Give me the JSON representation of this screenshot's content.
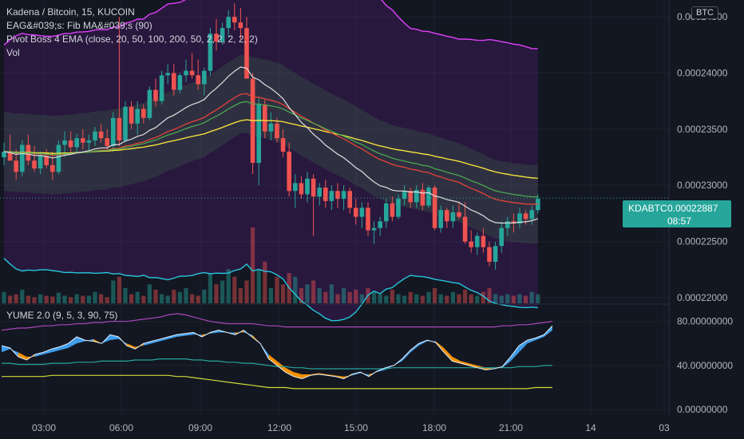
{
  "header": {
    "title": "Kadena / Bitcoin, 15, KUCOIN",
    "indicator_1": "EAG&#039;s: Fib MA&#039;s (90)",
    "indicator_2": "Pivot Boss 4 EMA (close, 20, 50, 100, 200, 50, 2, 2, 2, 2, 2)",
    "indicator_3": "Vol",
    "lower_indicator": "YUME 2.0 (9, 5, 3, 90, 75)"
  },
  "currency_button": "BTC",
  "price_tag": {
    "symbol": "KDABTC",
    "price": "0.00022887",
    "countdown": "08:57"
  },
  "colors": {
    "up": "#26a69a",
    "down": "#ef5350",
    "background": "#131722",
    "magenta": "#e040fb",
    "yellow": "#ffeb3b",
    "red_ema": "#f44336",
    "green_ema": "#4caf50",
    "cyan": "#26c6da",
    "white_ema": "#e0e0e0",
    "blue_ema": "#3f51b5"
  },
  "chart_data": [
    {
      "type": "candlestick",
      "title": "Kadena / Bitcoin, 15, KUCOIN",
      "x_tick_labels": [
        "03:00",
        "06:00",
        "09:00",
        "12:00",
        "15:00",
        "18:00",
        "21:00",
        "14",
        "03"
      ],
      "y_tick_labels": [
        "0.00024500",
        "0.00024000",
        "0.00023500",
        "0.00023000",
        "0.00022500",
        "0.00022000"
      ],
      "ylim": [
        0.0002195,
        0.0002465
      ],
      "last_price": 0.00022887,
      "candles": [
        {
          "o": 0.0002325,
          "h": 0.0002338,
          "l": 0.0002318,
          "c": 0.000233
        },
        {
          "o": 0.000233,
          "h": 0.0002345,
          "l": 0.0002322,
          "c": 0.0002322
        },
        {
          "o": 0.0002322,
          "h": 0.0002332,
          "l": 0.0002305,
          "c": 0.0002312
        },
        {
          "o": 0.0002312,
          "h": 0.000234,
          "l": 0.0002308,
          "c": 0.0002336
        },
        {
          "o": 0.0002336,
          "h": 0.0002345,
          "l": 0.0002318,
          "c": 0.0002322
        },
        {
          "o": 0.0002322,
          "h": 0.0002335,
          "l": 0.0002312,
          "c": 0.0002315
        },
        {
          "o": 0.0002315,
          "h": 0.000233,
          "l": 0.000231,
          "c": 0.0002326
        },
        {
          "o": 0.0002326,
          "h": 0.0002332,
          "l": 0.0002315,
          "c": 0.0002318
        },
        {
          "o": 0.0002318,
          "h": 0.000233,
          "l": 0.0002305,
          "c": 0.0002312
        },
        {
          "o": 0.0002312,
          "h": 0.000234,
          "l": 0.000231,
          "c": 0.0002336
        },
        {
          "o": 0.0002336,
          "h": 0.0002348,
          "l": 0.0002325,
          "c": 0.000234
        },
        {
          "o": 0.000234,
          "h": 0.0002348,
          "l": 0.0002328,
          "c": 0.0002334
        },
        {
          "o": 0.0002334,
          "h": 0.0002346,
          "l": 0.000233,
          "c": 0.0002342
        },
        {
          "o": 0.0002342,
          "h": 0.000235,
          "l": 0.0002332,
          "c": 0.0002338
        },
        {
          "o": 0.0002338,
          "h": 0.0002345,
          "l": 0.000233,
          "c": 0.000234
        },
        {
          "o": 0.000234,
          "h": 0.0002352,
          "l": 0.0002335,
          "c": 0.0002348
        },
        {
          "o": 0.0002348,
          "h": 0.0002355,
          "l": 0.0002338,
          "c": 0.0002342
        },
        {
          "o": 0.0002342,
          "h": 0.000235,
          "l": 0.000233,
          "c": 0.0002335
        },
        {
          "o": 0.0002335,
          "h": 0.0002365,
          "l": 0.000233,
          "c": 0.000236
        },
        {
          "o": 0.000236,
          "h": 0.000245,
          "l": 0.0002335,
          "c": 0.000234
        },
        {
          "o": 0.000234,
          "h": 0.0002375,
          "l": 0.0002338,
          "c": 0.000237
        },
        {
          "o": 0.000237,
          "h": 0.0002375,
          "l": 0.000235,
          "c": 0.0002355
        },
        {
          "o": 0.0002355,
          "h": 0.0002375,
          "l": 0.0002345,
          "c": 0.0002368
        },
        {
          "o": 0.0002368,
          "h": 0.0002372,
          "l": 0.0002355,
          "c": 0.000236
        },
        {
          "o": 0.000236,
          "h": 0.0002388,
          "l": 0.0002358,
          "c": 0.0002385
        },
        {
          "o": 0.0002385,
          "h": 0.0002395,
          "l": 0.000237,
          "c": 0.0002375
        },
        {
          "o": 0.0002375,
          "h": 0.0002402,
          "l": 0.0002372,
          "c": 0.0002398
        },
        {
          "o": 0.0002398,
          "h": 0.0002408,
          "l": 0.000239,
          "c": 0.00024
        },
        {
          "o": 0.00024,
          "h": 0.0002408,
          "l": 0.000238,
          "c": 0.0002385
        },
        {
          "o": 0.0002385,
          "h": 0.00024,
          "l": 0.0002382,
          "c": 0.0002398
        },
        {
          "o": 0.0002398,
          "h": 0.0002412,
          "l": 0.0002392,
          "c": 0.0002402
        },
        {
          "o": 0.0002402,
          "h": 0.0002418,
          "l": 0.0002395,
          "c": 0.0002398
        },
        {
          "o": 0.0002398,
          "h": 0.0002412,
          "l": 0.0002385,
          "c": 0.000239
        },
        {
          "o": 0.000239,
          "h": 0.0002405,
          "l": 0.000238,
          "c": 0.0002402
        },
        {
          "o": 0.0002402,
          "h": 0.000244,
          "l": 0.0002398,
          "c": 0.0002435
        },
        {
          "o": 0.0002435,
          "h": 0.0002448,
          "l": 0.000242,
          "c": 0.0002428
        },
        {
          "o": 0.0002428,
          "h": 0.0002445,
          "l": 0.0002425,
          "c": 0.000244
        },
        {
          "o": 0.000244,
          "h": 0.0002456,
          "l": 0.0002432,
          "c": 0.000245
        },
        {
          "o": 0.000245,
          "h": 0.0002462,
          "l": 0.0002438,
          "c": 0.0002445
        },
        {
          "o": 0.0002445,
          "h": 0.0002458,
          "l": 0.000243,
          "c": 0.000244
        },
        {
          "o": 0.000244,
          "h": 0.000245,
          "l": 0.0002395,
          "c": 0.0002395
        },
        {
          "o": 0.0002395,
          "h": 0.00024,
          "l": 0.000231,
          "c": 0.000232
        },
        {
          "o": 0.000232,
          "h": 0.0002378,
          "l": 0.00023,
          "c": 0.0002372
        },
        {
          "o": 0.0002372,
          "h": 0.0002376,
          "l": 0.0002342,
          "c": 0.0002348
        },
        {
          "o": 0.0002348,
          "h": 0.0002365,
          "l": 0.000234,
          "c": 0.0002355
        },
        {
          "o": 0.0002355,
          "h": 0.000236,
          "l": 0.0002338,
          "c": 0.0002342
        },
        {
          "o": 0.0002342,
          "h": 0.000235,
          "l": 0.0002325,
          "c": 0.000233
        },
        {
          "o": 0.000233,
          "h": 0.0002338,
          "l": 0.000229,
          "c": 0.0002295
        },
        {
          "o": 0.0002295,
          "h": 0.000231,
          "l": 0.000228,
          "c": 0.0002302
        },
        {
          "o": 0.0002302,
          "h": 0.0002308,
          "l": 0.0002288,
          "c": 0.0002292
        },
        {
          "o": 0.0002292,
          "h": 0.0002312,
          "l": 0.0002285,
          "c": 0.0002306
        },
        {
          "o": 0.0002306,
          "h": 0.000231,
          "l": 0.0002255,
          "c": 0.000229
        },
        {
          "o": 0.000229,
          "h": 0.0002302,
          "l": 0.0002282,
          "c": 0.0002298
        },
        {
          "o": 0.0002298,
          "h": 0.0002305,
          "l": 0.000228,
          "c": 0.0002286
        },
        {
          "o": 0.0002286,
          "h": 0.00023,
          "l": 0.0002278,
          "c": 0.0002295
        },
        {
          "o": 0.0002295,
          "h": 0.0002302,
          "l": 0.000228,
          "c": 0.0002288
        },
        {
          "o": 0.0002288,
          "h": 0.00023,
          "l": 0.0002278,
          "c": 0.0002295
        },
        {
          "o": 0.0002295,
          "h": 0.0002298,
          "l": 0.0002275,
          "c": 0.000228
        },
        {
          "o": 0.000228,
          "h": 0.0002288,
          "l": 0.0002265,
          "c": 0.0002272
        },
        {
          "o": 0.0002272,
          "h": 0.0002285,
          "l": 0.0002262,
          "c": 0.000228
        },
        {
          "o": 0.000228,
          "h": 0.0002285,
          "l": 0.0002255,
          "c": 0.000226
        },
        {
          "o": 0.000226,
          "h": 0.0002268,
          "l": 0.0002248,
          "c": 0.0002262
        },
        {
          "o": 0.0002262,
          "h": 0.0002272,
          "l": 0.0002255,
          "c": 0.0002268
        },
        {
          "o": 0.0002268,
          "h": 0.0002288,
          "l": 0.0002262,
          "c": 0.0002284
        },
        {
          "o": 0.0002284,
          "h": 0.000229,
          "l": 0.0002268,
          "c": 0.0002272
        },
        {
          "o": 0.0002272,
          "h": 0.0002292,
          "l": 0.000227,
          "c": 0.0002288
        },
        {
          "o": 0.0002288,
          "h": 0.00023,
          "l": 0.0002282,
          "c": 0.0002295
        },
        {
          "o": 0.0002295,
          "h": 0.0002298,
          "l": 0.000228,
          "c": 0.0002285
        },
        {
          "o": 0.0002285,
          "h": 0.00023,
          "l": 0.000228,
          "c": 0.0002296
        },
        {
          "o": 0.0002296,
          "h": 0.0002302,
          "l": 0.0002278,
          "c": 0.0002282
        },
        {
          "o": 0.0002282,
          "h": 0.00023,
          "l": 0.000228,
          "c": 0.0002298
        },
        {
          "o": 0.0002298,
          "h": 0.00023,
          "l": 0.000226,
          "c": 0.0002262
        },
        {
          "o": 0.0002262,
          "h": 0.0002282,
          "l": 0.0002258,
          "c": 0.0002278
        },
        {
          "o": 0.0002278,
          "h": 0.000228,
          "l": 0.0002262,
          "c": 0.0002268
        },
        {
          "o": 0.0002268,
          "h": 0.0002282,
          "l": 0.0002262,
          "c": 0.0002276
        },
        {
          "o": 0.0002276,
          "h": 0.0002285,
          "l": 0.000227,
          "c": 0.0002272
        },
        {
          "o": 0.0002272,
          "h": 0.0002285,
          "l": 0.0002248,
          "c": 0.000225
        },
        {
          "o": 0.000225,
          "h": 0.000226,
          "l": 0.000224,
          "c": 0.0002245
        },
        {
          "o": 0.0002245,
          "h": 0.0002258,
          "l": 0.0002238,
          "c": 0.0002255
        },
        {
          "o": 0.0002255,
          "h": 0.0002262,
          "l": 0.000224,
          "c": 0.0002245
        },
        {
          "o": 0.0002245,
          "h": 0.000225,
          "l": 0.0002228,
          "c": 0.0002232
        },
        {
          "o": 0.0002232,
          "h": 0.000225,
          "l": 0.0002225,
          "c": 0.0002246
        },
        {
          "o": 0.0002246,
          "h": 0.0002268,
          "l": 0.000224,
          "c": 0.0002262
        },
        {
          "o": 0.0002262,
          "h": 0.0002272,
          "l": 0.0002255,
          "c": 0.0002268
        },
        {
          "o": 0.0002268,
          "h": 0.0002275,
          "l": 0.0002258,
          "c": 0.0002266
        },
        {
          "o": 0.0002266,
          "h": 0.000228,
          "l": 0.0002262,
          "c": 0.0002275
        },
        {
          "o": 0.0002275,
          "h": 0.0002278,
          "l": 0.0002265,
          "c": 0.000227
        },
        {
          "o": 0.000227,
          "h": 0.0002282,
          "l": 0.0002265,
          "c": 0.0002278
        },
        {
          "o": 0.0002278,
          "h": 0.0002292,
          "l": 0.0002275,
          "c": 0.0002288
        }
      ],
      "volume": [
        0.15,
        0.1,
        0.12,
        0.18,
        0.1,
        0.08,
        0.12,
        0.1,
        0.09,
        0.14,
        0.1,
        0.08,
        0.12,
        0.1,
        0.1,
        0.15,
        0.12,
        0.08,
        0.3,
        0.35,
        0.2,
        0.12,
        0.15,
        0.1,
        0.25,
        0.18,
        0.12,
        0.1,
        0.18,
        0.15,
        0.2,
        0.12,
        0.1,
        0.18,
        0.4,
        0.25,
        0.3,
        0.45,
        0.35,
        0.2,
        0.3,
        1.0,
        0.45,
        0.55,
        0.2,
        0.35,
        0.25,
        0.4,
        0.35,
        0.2,
        0.25,
        0.3,
        0.2,
        0.15,
        0.25,
        0.12,
        0.2,
        0.15,
        0.18,
        0.12,
        0.2,
        0.15,
        0.12,
        0.1,
        0.18,
        0.12,
        0.1,
        0.15,
        0.12,
        0.1,
        0.15,
        0.2,
        0.12,
        0.1,
        0.15,
        0.12,
        0.18,
        0.12,
        0.1,
        0.15,
        0.2,
        0.12,
        0.1,
        0.12,
        0.1,
        0.12,
        0.1,
        0.15,
        0.12
      ]
    },
    {
      "type": "area",
      "title": "YUME 2.0 (9, 5, 3, 90, 75)",
      "y_tick_labels": [
        "80.00000000",
        "40.00000000",
        "0.00000000"
      ],
      "ylim": [
        -5,
        95
      ],
      "fast": [
        58,
        56,
        48,
        45,
        50,
        52,
        55,
        57,
        60,
        66,
        63,
        62,
        60,
        68,
        66,
        58,
        55,
        60,
        62,
        64,
        66,
        68,
        69,
        70,
        66,
        70,
        72,
        70,
        68,
        72,
        66,
        60,
        46,
        40,
        34,
        30,
        28,
        31,
        32,
        31,
        30,
        28,
        32,
        34,
        30,
        35,
        38,
        40,
        46,
        54,
        60,
        63,
        61,
        52,
        44,
        42,
        40,
        38,
        36,
        37,
        39,
        48,
        58,
        63,
        65,
        68,
        76
      ],
      "slow": [
        52,
        55,
        52,
        48,
        48,
        50,
        52,
        54,
        56,
        60,
        62,
        64,
        60,
        63,
        64,
        60,
        57,
        58,
        60,
        62,
        64,
        66,
        67,
        68,
        68,
        69,
        70,
        70,
        70,
        70,
        68,
        60,
        50,
        44,
        38,
        34,
        32,
        32,
        33,
        32,
        31,
        30,
        31,
        33,
        32,
        34,
        36,
        40,
        44,
        52,
        58,
        62,
        62,
        56,
        48,
        44,
        42,
        40,
        38,
        37,
        38,
        44,
        52,
        60,
        63,
        66,
        72
      ],
      "upper_band": [
        72,
        73,
        74,
        74,
        75,
        76,
        76,
        77,
        77,
        78,
        78,
        79,
        79,
        80,
        80,
        80,
        81,
        82,
        83,
        84,
        86,
        87,
        86,
        84,
        82,
        80,
        79,
        78,
        78,
        78,
        78,
        77,
        76,
        76,
        75,
        75,
        75,
        75,
        75,
        75,
        75,
        75,
        75,
        75,
        75,
        75,
        75,
        75,
        75,
        75,
        75,
        75,
        75,
        75,
        75,
        75,
        75,
        75,
        75,
        75,
        76,
        76,
        77,
        77,
        78,
        79,
        80
      ],
      "mid_line": [
        42,
        42,
        41,
        41,
        41,
        41,
        42,
        42,
        42,
        43,
        43,
        43,
        44,
        44,
        44,
        44,
        45,
        45,
        45,
        46,
        46,
        46,
        46,
        45,
        45,
        44,
        44,
        43,
        43,
        42,
        42,
        41,
        40,
        39,
        39,
        38,
        38,
        37,
        37,
        37,
        37,
        37,
        37,
        37,
        37,
        37,
        37,
        38,
        38,
        38,
        38,
        38,
        38,
        38,
        38,
        38,
        38,
        38,
        38,
        38,
        38,
        38,
        39,
        39,
        39,
        40,
        40
      ],
      "lower_line": [
        30,
        30,
        30,
        30,
        30,
        30,
        31,
        31,
        31,
        31,
        31,
        31,
        31,
        31,
        31,
        31,
        31,
        31,
        31,
        31,
        31,
        30,
        30,
        29,
        28,
        27,
        26,
        25,
        24,
        23,
        22,
        21,
        20,
        20,
        20,
        19,
        19,
        19,
        19,
        19,
        19,
        19,
        19,
        19,
        19,
        19,
        19,
        19,
        19,
        19,
        19,
        19,
        19,
        19,
        19,
        19,
        19,
        19,
        19,
        19,
        19,
        19,
        19,
        19,
        20,
        20,
        20
      ]
    }
  ]
}
